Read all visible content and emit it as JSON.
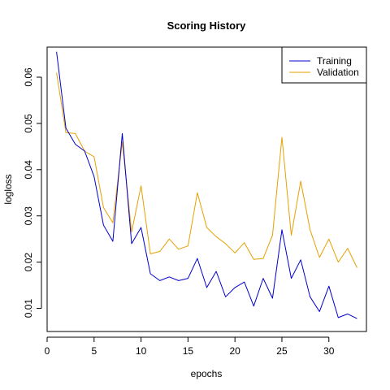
{
  "chart_data": {
    "type": "line",
    "title": "Scoring History",
    "xlabel": "epochs",
    "ylabel": "logloss",
    "xlim": [
      0,
      34
    ],
    "ylim": [
      0.005,
      0.0665
    ],
    "xticks": [
      0,
      5,
      10,
      15,
      20,
      25,
      30
    ],
    "yticks": [
      0.01,
      0.02,
      0.03,
      0.04,
      0.05,
      0.06
    ],
    "ytick_labels": [
      "0.01",
      "0.02",
      "0.03",
      "0.04",
      "0.05",
      "0.06"
    ],
    "legend_position": "top-right",
    "grid": false,
    "x": [
      1,
      2,
      3,
      4,
      5,
      6,
      7,
      8,
      9,
      10,
      11,
      12,
      13,
      14,
      15,
      16,
      17,
      18,
      19,
      20,
      21,
      22,
      23,
      24,
      25,
      26,
      27,
      28,
      29,
      30,
      31,
      32,
      33
    ],
    "series": [
      {
        "name": "Training",
        "color": "#0000CD",
        "values": [
          0.0655,
          0.049,
          0.0455,
          0.044,
          0.0385,
          0.028,
          0.0245,
          0.0478,
          0.024,
          0.0275,
          0.0175,
          0.016,
          0.0168,
          0.016,
          0.0165,
          0.0208,
          0.0145,
          0.018,
          0.0125,
          0.0145,
          0.0157,
          0.0105,
          0.0165,
          0.0122,
          0.027,
          0.0165,
          0.0205,
          0.0125,
          0.0093,
          0.0148,
          0.008,
          0.0088,
          0.0078
        ]
      },
      {
        "name": "Validation",
        "color": "#E6A000",
        "values": [
          0.061,
          0.048,
          0.0478,
          0.044,
          0.0428,
          0.0318,
          0.0285,
          0.046,
          0.0265,
          0.0365,
          0.0218,
          0.0223,
          0.025,
          0.0228,
          0.0235,
          0.035,
          0.0275,
          0.0255,
          0.024,
          0.022,
          0.0242,
          0.0206,
          0.0208,
          0.0258,
          0.047,
          0.0258,
          0.0375,
          0.027,
          0.021,
          0.025,
          0.02,
          0.023,
          0.0188
        ]
      }
    ]
  }
}
